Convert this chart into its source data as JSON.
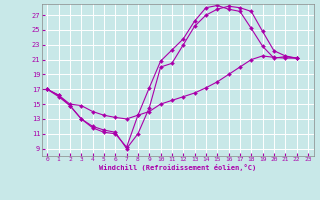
{
  "xlabel": "Windchill (Refroidissement éolien,°C)",
  "background_color": "#c8e8e8",
  "line_color": "#aa00aa",
  "xlim": [
    -0.5,
    23.5
  ],
  "ylim": [
    8.0,
    28.5
  ],
  "yticks": [
    9,
    11,
    13,
    15,
    17,
    19,
    21,
    23,
    25,
    27
  ],
  "xticks": [
    0,
    1,
    2,
    3,
    4,
    5,
    6,
    7,
    8,
    9,
    10,
    11,
    12,
    13,
    14,
    15,
    16,
    17,
    18,
    19,
    20,
    21,
    22,
    23
  ],
  "series": [
    {
      "x": [
        0,
        1,
        2,
        3,
        4,
        5,
        6,
        7,
        8,
        9,
        10,
        11,
        12,
        13,
        14,
        15,
        16,
        17,
        18,
        19,
        20,
        21,
        22
      ],
      "y": [
        17.0,
        16.2,
        14.8,
        13.0,
        12.0,
        11.5,
        11.2,
        9.0,
        11.0,
        14.5,
        20.0,
        20.5,
        23.0,
        25.5,
        27.0,
        27.8,
        28.2,
        28.0,
        27.5,
        24.8,
        22.2,
        21.5,
        21.2
      ]
    },
    {
      "x": [
        0,
        1,
        2,
        3,
        4,
        5,
        6,
        7,
        8,
        9,
        10,
        11,
        12,
        13,
        14,
        15,
        16,
        17,
        18,
        19,
        20,
        21,
        22
      ],
      "y": [
        17.0,
        16.0,
        14.8,
        13.0,
        11.8,
        11.2,
        11.0,
        9.2,
        13.5,
        17.2,
        20.8,
        22.3,
        23.8,
        26.2,
        28.0,
        28.3,
        27.8,
        27.5,
        25.2,
        22.8,
        21.2,
        21.4,
        21.2
      ]
    },
    {
      "x": [
        0,
        1,
        2,
        3,
        4,
        5,
        6,
        7,
        8,
        9,
        10,
        11,
        12,
        13,
        14,
        15,
        16,
        17,
        18,
        19,
        20,
        21,
        22
      ],
      "y": [
        17.0,
        16.2,
        15.0,
        14.8,
        14.0,
        13.5,
        13.2,
        13.0,
        13.5,
        14.0,
        15.0,
        15.5,
        16.0,
        16.5,
        17.2,
        18.0,
        19.0,
        20.0,
        21.0,
        21.5,
        21.3,
        21.2,
        21.2
      ]
    }
  ]
}
